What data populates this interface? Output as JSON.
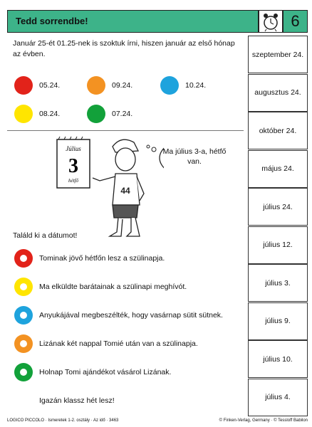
{
  "header": {
    "title": "Tedd sorrendbe!",
    "number": "6"
  },
  "intro": "Január 25-ét 01.25-nek is szoktuk írni, hiszen január az első hónap az évben.",
  "date_codes": [
    {
      "label": "05.24.",
      "color": "#e2231a"
    },
    {
      "label": "09.24.",
      "color": "#f39222"
    },
    {
      "label": "10.24.",
      "color": "#1ea3dd"
    },
    {
      "label": "08.24.",
      "color": "#ffe500"
    },
    {
      "label": "07.24.",
      "color": "#12a13a"
    }
  ],
  "illustration": {
    "calendar": {
      "month": "Július",
      "day": "3",
      "weekday": "hétfő"
    },
    "speech": "Ma július 3-a, hétfő van."
  },
  "task": "Találd ki a dátumot!",
  "statements": [
    {
      "text": "Tominak jövő hétfőn lesz a szülinapja.",
      "color": "#e2231a"
    },
    {
      "text": "Ma elküldte barátainak a szülinapi meghívót.",
      "color": "#ffe500"
    },
    {
      "text": "Anyukájával megbeszélték, hogy vasárnap sütit sütnek.",
      "color": "#1ea3dd"
    },
    {
      "text": "Lizának két nappal Tomié után van a szülinapja.",
      "color": "#f39222"
    },
    {
      "text": "Holnap Tomi ajándékot vásárol Lizának.",
      "color": "#12a13a"
    }
  ],
  "closing": "Igazán klassz hét lesz!",
  "answers": [
    "szeptember 24.",
    "augusztus 24.",
    "október 24.",
    "május 24.",
    "július 24.",
    "július 12.",
    "július 3.",
    "július 9.",
    "július 10.",
    "július 4."
  ],
  "footer": {
    "left": "LOGICO PICCOLO · Ismeretek 1-2. osztály · Az idő · 3463",
    "right": "© Finken-Verlag, Germany · © Tessloff Babilon"
  }
}
